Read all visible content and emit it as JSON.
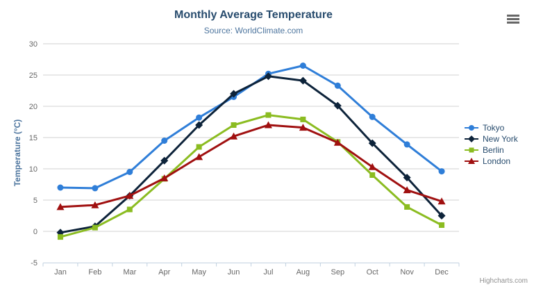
{
  "chart_data": {
    "type": "line",
    "title": "Monthly Average Temperature",
    "subtitle": "Source: WorldClimate.com",
    "xlabel": "",
    "ylabel": "Temperature (°C)",
    "categories": [
      "Jan",
      "Feb",
      "Mar",
      "Apr",
      "May",
      "Jun",
      "Jul",
      "Aug",
      "Sep",
      "Oct",
      "Nov",
      "Dec"
    ],
    "ylim": [
      -5,
      30
    ],
    "ytick_step": 5,
    "yticks": [
      -5,
      0,
      5,
      10,
      15,
      20,
      25,
      30
    ],
    "grid": true,
    "legend_position": "right",
    "series": [
      {
        "name": "Tokyo",
        "marker": "circle",
        "color": "#2f7ed8",
        "values": [
          7.0,
          6.9,
          9.5,
          14.5,
          18.2,
          21.5,
          25.2,
          26.5,
          23.3,
          18.3,
          13.9,
          9.6
        ]
      },
      {
        "name": "New York",
        "marker": "diamond",
        "color": "#0d233a",
        "values": [
          -0.2,
          0.8,
          5.7,
          11.3,
          17.0,
          22.0,
          24.8,
          24.1,
          20.1,
          14.1,
          8.6,
          2.5
        ]
      },
      {
        "name": "Berlin",
        "marker": "square",
        "color": "#8bbc21",
        "values": [
          -0.9,
          0.6,
          3.5,
          8.4,
          13.5,
          17.0,
          18.6,
          17.9,
          14.3,
          9.0,
          3.9,
          1.0
        ]
      },
      {
        "name": "London",
        "marker": "triangle",
        "color": "#a01010",
        "values": [
          3.9,
          4.2,
          5.7,
          8.5,
          11.9,
          15.2,
          17.0,
          16.6,
          14.2,
          10.3,
          6.6,
          4.8
        ]
      }
    ]
  },
  "colors": {
    "title": "#274b6d",
    "subtitle": "#4d759e",
    "axis_title": "#4d759e",
    "tick_label": "#666666",
    "gridline": "#d0d0d0",
    "axis_line": "#c0d0e0",
    "legend_text": "#274b6d",
    "credits": "#909090",
    "menu_icon": "#666666"
  },
  "export_menu": {
    "icon": "hamburger-icon"
  },
  "credits": {
    "label": "Highcharts.com"
  }
}
